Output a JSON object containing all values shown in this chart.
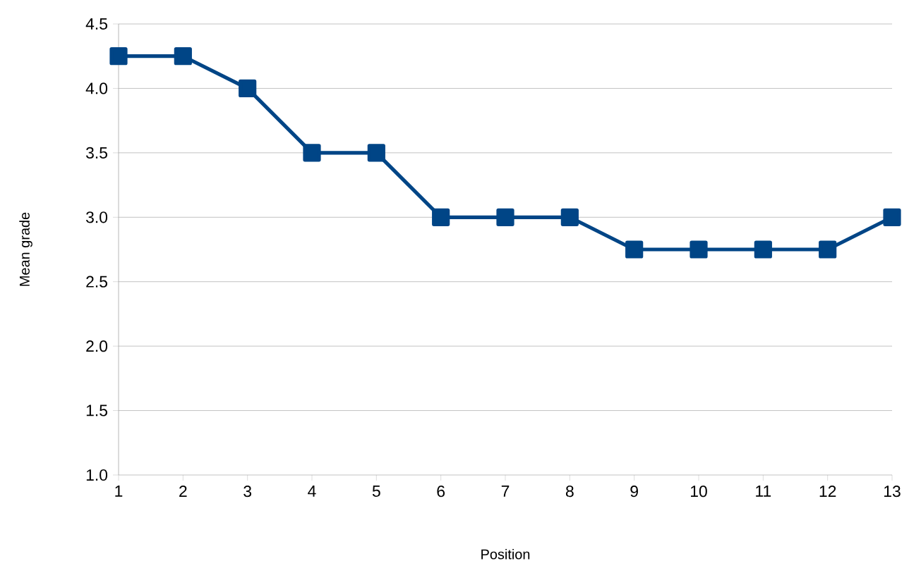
{
  "chart_data": {
    "type": "line",
    "xlabel": "Position",
    "ylabel": "Mean grade",
    "x": [
      1,
      2,
      3,
      4,
      5,
      6,
      7,
      8,
      9,
      10,
      11,
      12,
      13
    ],
    "series": [
      {
        "color": "#004586",
        "values": [
          4.25,
          4.25,
          4.0,
          3.5,
          3.5,
          3.0,
          3.0,
          3.0,
          2.75,
          2.75,
          2.75,
          2.75,
          3.0
        ]
      }
    ],
    "xlim": [
      1,
      13
    ],
    "xticks": [
      1,
      2,
      3,
      4,
      5,
      6,
      7,
      8,
      9,
      10,
      11,
      12,
      13
    ],
    "ylim": [
      1.0,
      4.5
    ],
    "yticks": [
      {
        "value": 1.0,
        "label": "1.0"
      },
      {
        "value": 1.5,
        "label": "1.5"
      },
      {
        "value": 2.0,
        "label": "2.0"
      },
      {
        "value": 2.5,
        "label": "2.5"
      },
      {
        "value": 3.0,
        "label": "3.0"
      },
      {
        "value": 3.5,
        "label": "3.5"
      },
      {
        "value": 4.0,
        "label": "4.0"
      },
      {
        "value": 4.5,
        "label": "4.5"
      }
    ],
    "grid": "y",
    "marker": "square",
    "line_style": "solid"
  }
}
